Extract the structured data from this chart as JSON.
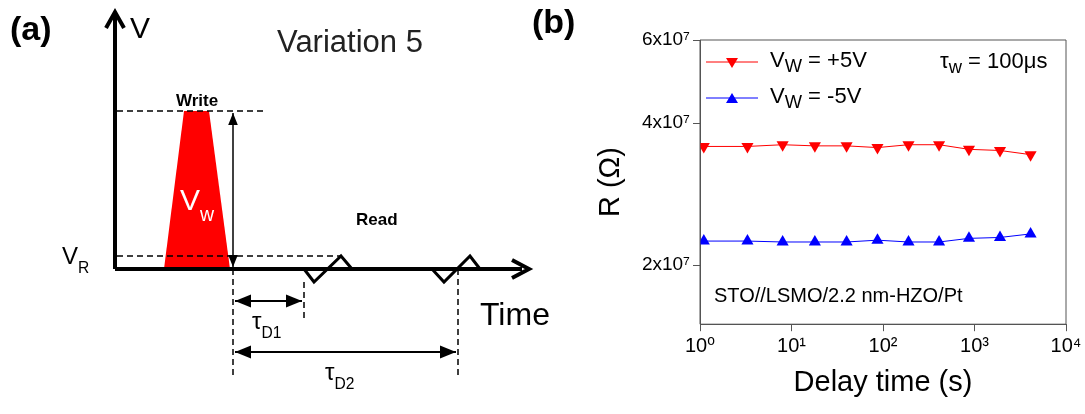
{
  "chart_data": [
    {
      "type": "other",
      "title": "Variation 5",
      "annotations": [
        "(a)",
        "V",
        "Write",
        "V$_{w}$",
        "Read",
        "V$_{R}$",
        "Time",
        "τ$_{D1}$",
        "τ$_{D2}$"
      ]
    },
    {
      "type": "line",
      "xlabel": "Delay time (s)",
      "ylabel": "R (Ω)",
      "log": "xy",
      "legend": "top left",
      "line_style": "solid",
      "x": [
        1.1,
        3.3,
        8,
        18,
        40,
        87,
        190,
        410,
        870,
        1900,
        4100
      ],
      "series": [
        {
          "name": "V$_{W}$ = +5V",
          "color": "#ff0000",
          "marker": "triangle_down",
          "values": [
            35700000.0,
            35700000.0,
            36000000.0,
            35800000.0,
            35800000.0,
            35500000.0,
            36000000.0,
            36000000.0,
            35200000.0,
            35000000.0,
            34300000.0
          ]
        },
        {
          "name": "V$_{W}$ = -5V",
          "color": "#0000ff",
          "marker": "triangle",
          "values": [
            22500000.0,
            22500000.0,
            22400000.0,
            22400000.0,
            22400000.0,
            22600000.0,
            22400000.0,
            22400000.0,
            22800000.0,
            22900000.0,
            23300000.0
          ]
        }
      ],
      "xlim": [
        1,
        10000
      ],
      "xticks": [
        {
          "value": 1,
          "label": "10⁰"
        },
        {
          "value": 10,
          "label": "10¹"
        },
        {
          "value": 100,
          "label": "10²"
        },
        {
          "value": 1000,
          "label": "10³"
        },
        {
          "value": 10000,
          "label": "10⁴"
        }
      ],
      "ylim": [
        15000000.0,
        60000000.0
      ],
      "yticks": [
        {
          "value": 20000000.0,
          "label": "2x10⁷"
        },
        {
          "value": 40000000.0,
          "label": "4x10⁷"
        },
        {
          "value": 60000000.0,
          "label": "6x10⁷"
        }
      ],
      "annotations": [
        "(b)",
        "τ$_{w}$ = 100μs",
        "STO//LSMO/2.2 nm-HZO/Pt"
      ]
    }
  ]
}
